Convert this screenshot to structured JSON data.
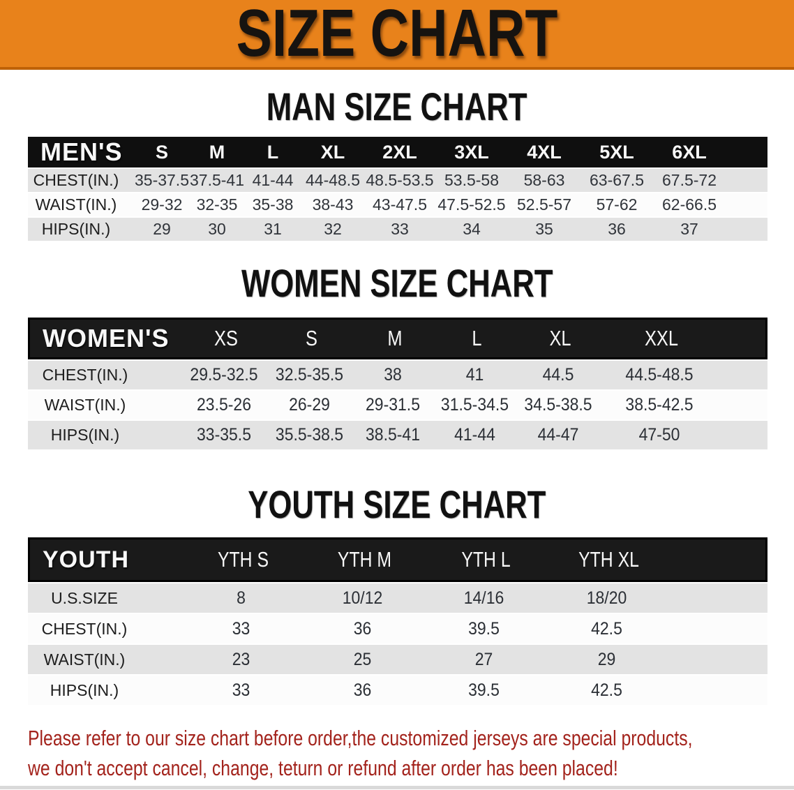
{
  "banner": {
    "title": "SIZE CHART",
    "bg_color": "#e8821b",
    "border_color": "#bf6207"
  },
  "colors": {
    "header_bar": "#0f0f0f",
    "row_gray": "#e3e3e3",
    "note_red": "#a3231c"
  },
  "men": {
    "heading": "MAN SIZE CHART",
    "label": "MEN'S",
    "columns": [
      "S",
      "M",
      "L",
      "XL",
      "2XL",
      "3XL",
      "4XL",
      "5XL",
      "6XL"
    ],
    "rows": [
      {
        "label": "CHEST(IN.)",
        "values": [
          "35-37.5",
          "37.5-41",
          "41-44",
          "44-48.5",
          "48.5-53.5",
          "53.5-58",
          "58-63",
          "63-67.5",
          "67.5-72"
        ]
      },
      {
        "label": "WAIST(IN.)",
        "values": [
          "29-32",
          "32-35",
          "35-38",
          "38-43",
          "43-47.5",
          "47.5-52.5",
          "52.5-57",
          "57-62",
          "62-66.5"
        ]
      },
      {
        "label": "HIPS(IN.)",
        "values": [
          "29",
          "30",
          "31",
          "32",
          "33",
          "34",
          "35",
          "36",
          "37"
        ]
      }
    ]
  },
  "women": {
    "heading": "WOMEN SIZE CHART",
    "label": "WOMEN'S",
    "columns": [
      "XS",
      "S",
      "M",
      "L",
      "XL",
      "XXL"
    ],
    "rows": [
      {
        "label": "CHEST(IN.)",
        "values": [
          "29.5-32.5",
          "32.5-35.5",
          "38",
          "41",
          "44.5",
          "44.5-48.5"
        ]
      },
      {
        "label": "WAIST(IN.)",
        "values": [
          "23.5-26",
          "26-29",
          "29-31.5",
          "31.5-34.5",
          "34.5-38.5",
          "38.5-42.5"
        ]
      },
      {
        "label": "HIPS(IN.)",
        "values": [
          "33-35.5",
          "35.5-38.5",
          "38.5-41",
          "41-44",
          "44-47",
          "47-50"
        ]
      }
    ]
  },
  "youth": {
    "heading": "YOUTH SIZE CHART",
    "label": "YOUTH",
    "columns": [
      "YTH S",
      "YTH M",
      "YTH L",
      "YTH XL"
    ],
    "rows": [
      {
        "label": "U.S.SIZE",
        "values": [
          "8",
          "10/12",
          "14/16",
          "18/20"
        ]
      },
      {
        "label": "CHEST(IN.)",
        "values": [
          "33",
          "36",
          "39.5",
          "42.5"
        ]
      },
      {
        "label": "WAIST(IN.)",
        "values": [
          "23",
          "25",
          "27",
          "29"
        ]
      },
      {
        "label": "HIPS(IN.)",
        "values": [
          "33",
          "36",
          "39.5",
          "42.5"
        ]
      }
    ]
  },
  "footer": {
    "line1": "Please refer to our size chart before order,the customized jerseys are special products,",
    "line2": "we don't accept cancel, change, teturn or refund after order has been placed!"
  }
}
